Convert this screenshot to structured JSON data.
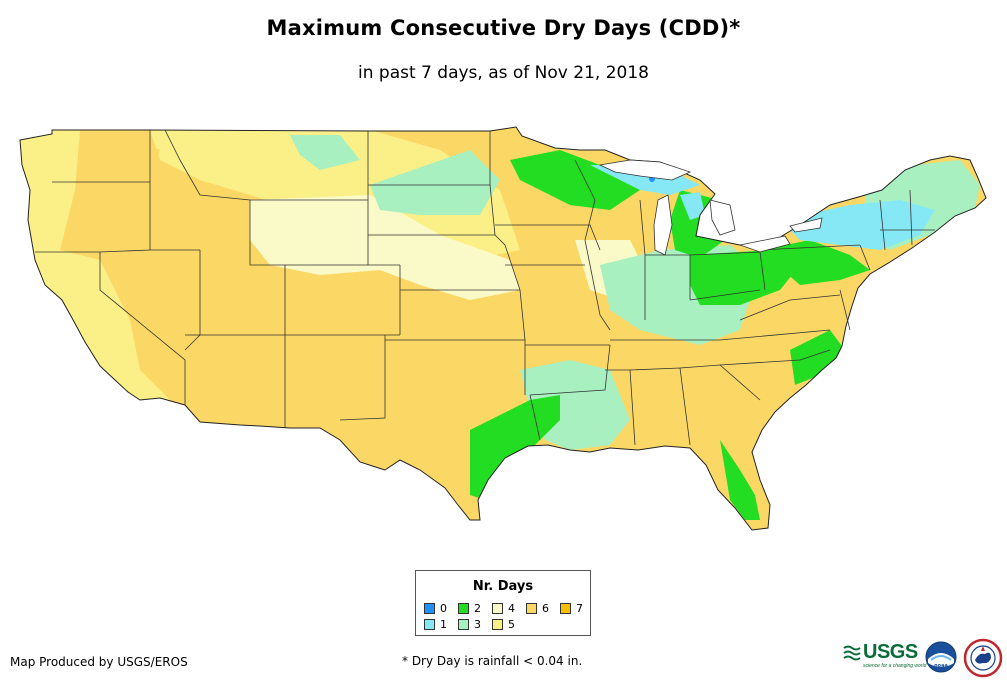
{
  "title": "Maximum Consecutive Dry Days (CDD)*",
  "subtitle": "in past 7 days, as of Nov 21, 2018",
  "legend": {
    "title": "Nr. Days",
    "items": [
      {
        "label": "0",
        "color": "#1e90ff"
      },
      {
        "label": "1",
        "color": "#87e8f5"
      },
      {
        "label": "2",
        "color": "#22dd22"
      },
      {
        "label": "3",
        "color": "#a8f0c0"
      },
      {
        "label": "4",
        "color": "#fafac8"
      },
      {
        "label": "5",
        "color": "#fbf088"
      },
      {
        "label": "6",
        "color": "#fbd866"
      },
      {
        "label": "7",
        "color": "#f6c000"
      }
    ]
  },
  "footer": {
    "credit": "Map Produced by USGS/EROS",
    "note": "* Dry Day is rainfall < 0.04 in."
  },
  "logos": {
    "usgs": "USGS",
    "usgs_tagline": "science for a changing world",
    "noaa": "NOAA",
    "nws": "NWS"
  }
}
